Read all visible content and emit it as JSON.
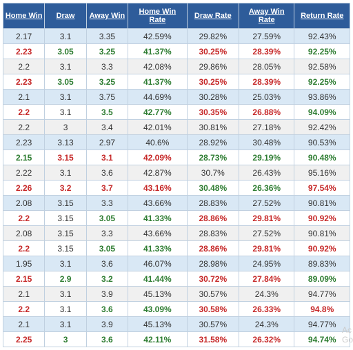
{
  "columns": [
    {
      "key": "home_win",
      "label": "Home Win",
      "width": "12%"
    },
    {
      "key": "draw",
      "label": "Draw",
      "width": "12%"
    },
    {
      "key": "away_win",
      "label": "Away Win",
      "width": "12%"
    },
    {
      "key": "home_win_rate",
      "label": "Home Win Rate",
      "width": "17%"
    },
    {
      "key": "draw_rate",
      "label": "Draw Rate",
      "width": "15%"
    },
    {
      "key": "away_win_rate",
      "label": "Away Win Rate",
      "width": "16%"
    },
    {
      "key": "return_rate",
      "label": "Return Rate",
      "width": "16%"
    }
  ],
  "colors": {
    "header_bg": "#2e5c9a",
    "header_fg": "#ffffff",
    "border": "#c0d0e0",
    "row_alt_a": "#d9e8f5",
    "row_alt_b": "#ffffff",
    "row_alt_c": "#f0f0f0",
    "text_normal": "#333333",
    "text_red": "#c62828",
    "text_green": "#2e7d32"
  },
  "rows": [
    {
      "bg": "#d9e8f5",
      "cells": [
        {
          "v": "2.17",
          "c": "norm"
        },
        {
          "v": "3.1",
          "c": "norm"
        },
        {
          "v": "3.35",
          "c": "norm"
        },
        {
          "v": "42.59%",
          "c": "norm"
        },
        {
          "v": "29.82%",
          "c": "norm"
        },
        {
          "v": "27.59%",
          "c": "norm"
        },
        {
          "v": "92.43%",
          "c": "norm"
        }
      ]
    },
    {
      "bg": "#ffffff",
      "cells": [
        {
          "v": "2.23",
          "c": "red"
        },
        {
          "v": "3.05",
          "c": "green"
        },
        {
          "v": "3.25",
          "c": "green"
        },
        {
          "v": "41.37%",
          "c": "green"
        },
        {
          "v": "30.25%",
          "c": "red"
        },
        {
          "v": "28.39%",
          "c": "red"
        },
        {
          "v": "92.25%",
          "c": "green"
        }
      ]
    },
    {
      "bg": "#f0f0f0",
      "cells": [
        {
          "v": "2.2",
          "c": "norm"
        },
        {
          "v": "3.1",
          "c": "norm"
        },
        {
          "v": "3.3",
          "c": "norm"
        },
        {
          "v": "42.08%",
          "c": "norm"
        },
        {
          "v": "29.86%",
          "c": "norm"
        },
        {
          "v": "28.05%",
          "c": "norm"
        },
        {
          "v": "92.58%",
          "c": "norm"
        }
      ]
    },
    {
      "bg": "#ffffff",
      "cells": [
        {
          "v": "2.23",
          "c": "red"
        },
        {
          "v": "3.05",
          "c": "green"
        },
        {
          "v": "3.25",
          "c": "green"
        },
        {
          "v": "41.37%",
          "c": "green"
        },
        {
          "v": "30.25%",
          "c": "red"
        },
        {
          "v": "28.39%",
          "c": "red"
        },
        {
          "v": "92.25%",
          "c": "green"
        }
      ]
    },
    {
      "bg": "#d9e8f5",
      "cells": [
        {
          "v": "2.1",
          "c": "norm"
        },
        {
          "v": "3.1",
          "c": "norm"
        },
        {
          "v": "3.75",
          "c": "norm"
        },
        {
          "v": "44.69%",
          "c": "norm"
        },
        {
          "v": "30.28%",
          "c": "norm"
        },
        {
          "v": "25.03%",
          "c": "norm"
        },
        {
          "v": "93.86%",
          "c": "norm"
        }
      ]
    },
    {
      "bg": "#ffffff",
      "cells": [
        {
          "v": "2.2",
          "c": "red"
        },
        {
          "v": "3.1",
          "c": "norm"
        },
        {
          "v": "3.5",
          "c": "green"
        },
        {
          "v": "42.77%",
          "c": "green"
        },
        {
          "v": "30.35%",
          "c": "red"
        },
        {
          "v": "26.88%",
          "c": "red"
        },
        {
          "v": "94.09%",
          "c": "green"
        }
      ]
    },
    {
      "bg": "#f0f0f0",
      "cells": [
        {
          "v": "2.2",
          "c": "norm"
        },
        {
          "v": "3",
          "c": "norm"
        },
        {
          "v": "3.4",
          "c": "norm"
        },
        {
          "v": "42.01%",
          "c": "norm"
        },
        {
          "v": "30.81%",
          "c": "norm"
        },
        {
          "v": "27.18%",
          "c": "norm"
        },
        {
          "v": "92.42%",
          "c": "norm"
        }
      ]
    },
    {
      "bg": "#d9e8f5",
      "cells": [
        {
          "v": "2.23",
          "c": "norm"
        },
        {
          "v": "3.13",
          "c": "norm"
        },
        {
          "v": "2.97",
          "c": "norm"
        },
        {
          "v": "40.6%",
          "c": "norm"
        },
        {
          "v": "28.92%",
          "c": "norm"
        },
        {
          "v": "30.48%",
          "c": "norm"
        },
        {
          "v": "90.53%",
          "c": "norm"
        }
      ]
    },
    {
      "bg": "#ffffff",
      "cells": [
        {
          "v": "2.15",
          "c": "green"
        },
        {
          "v": "3.15",
          "c": "red"
        },
        {
          "v": "3.1",
          "c": "red"
        },
        {
          "v": "42.09%",
          "c": "red"
        },
        {
          "v": "28.73%",
          "c": "green"
        },
        {
          "v": "29.19%",
          "c": "green"
        },
        {
          "v": "90.48%",
          "c": "green"
        }
      ]
    },
    {
      "bg": "#f0f0f0",
      "cells": [
        {
          "v": "2.22",
          "c": "norm"
        },
        {
          "v": "3.1",
          "c": "norm"
        },
        {
          "v": "3.6",
          "c": "norm"
        },
        {
          "v": "42.87%",
          "c": "norm"
        },
        {
          "v": "30.7%",
          "c": "norm"
        },
        {
          "v": "26.43%",
          "c": "norm"
        },
        {
          "v": "95.16%",
          "c": "norm"
        }
      ]
    },
    {
      "bg": "#ffffff",
      "cells": [
        {
          "v": "2.26",
          "c": "red"
        },
        {
          "v": "3.2",
          "c": "red"
        },
        {
          "v": "3.7",
          "c": "red"
        },
        {
          "v": "43.16%",
          "c": "red"
        },
        {
          "v": "30.48%",
          "c": "green"
        },
        {
          "v": "26.36%",
          "c": "green"
        },
        {
          "v": "97.54%",
          "c": "red"
        }
      ]
    },
    {
      "bg": "#d9e8f5",
      "cells": [
        {
          "v": "2.08",
          "c": "norm"
        },
        {
          "v": "3.15",
          "c": "norm"
        },
        {
          "v": "3.3",
          "c": "norm"
        },
        {
          "v": "43.66%",
          "c": "norm"
        },
        {
          "v": "28.83%",
          "c": "norm"
        },
        {
          "v": "27.52%",
          "c": "norm"
        },
        {
          "v": "90.81%",
          "c": "norm"
        }
      ]
    },
    {
      "bg": "#ffffff",
      "cells": [
        {
          "v": "2.2",
          "c": "red"
        },
        {
          "v": "3.15",
          "c": "norm"
        },
        {
          "v": "3.05",
          "c": "green"
        },
        {
          "v": "41.33%",
          "c": "green"
        },
        {
          "v": "28.86%",
          "c": "red"
        },
        {
          "v": "29.81%",
          "c": "red"
        },
        {
          "v": "90.92%",
          "c": "red"
        }
      ]
    },
    {
      "bg": "#f0f0f0",
      "cells": [
        {
          "v": "2.08",
          "c": "norm"
        },
        {
          "v": "3.15",
          "c": "norm"
        },
        {
          "v": "3.3",
          "c": "norm"
        },
        {
          "v": "43.66%",
          "c": "norm"
        },
        {
          "v": "28.83%",
          "c": "norm"
        },
        {
          "v": "27.52%",
          "c": "norm"
        },
        {
          "v": "90.81%",
          "c": "norm"
        }
      ]
    },
    {
      "bg": "#ffffff",
      "cells": [
        {
          "v": "2.2",
          "c": "red"
        },
        {
          "v": "3.15",
          "c": "norm"
        },
        {
          "v": "3.05",
          "c": "green"
        },
        {
          "v": "41.33%",
          "c": "green"
        },
        {
          "v": "28.86%",
          "c": "red"
        },
        {
          "v": "29.81%",
          "c": "red"
        },
        {
          "v": "90.92%",
          "c": "red"
        }
      ]
    },
    {
      "bg": "#d9e8f5",
      "cells": [
        {
          "v": "1.95",
          "c": "norm"
        },
        {
          "v": "3.1",
          "c": "norm"
        },
        {
          "v": "3.6",
          "c": "norm"
        },
        {
          "v": "46.07%",
          "c": "norm"
        },
        {
          "v": "28.98%",
          "c": "norm"
        },
        {
          "v": "24.95%",
          "c": "norm"
        },
        {
          "v": "89.83%",
          "c": "norm"
        }
      ]
    },
    {
      "bg": "#ffffff",
      "cells": [
        {
          "v": "2.15",
          "c": "red"
        },
        {
          "v": "2.9",
          "c": "green"
        },
        {
          "v": "3.2",
          "c": "green"
        },
        {
          "v": "41.44%",
          "c": "green"
        },
        {
          "v": "30.72%",
          "c": "red"
        },
        {
          "v": "27.84%",
          "c": "red"
        },
        {
          "v": "89.09%",
          "c": "green"
        }
      ]
    },
    {
      "bg": "#f0f0f0",
      "cells": [
        {
          "v": "2.1",
          "c": "norm"
        },
        {
          "v": "3.1",
          "c": "norm"
        },
        {
          "v": "3.9",
          "c": "norm"
        },
        {
          "v": "45.13%",
          "c": "norm"
        },
        {
          "v": "30.57%",
          "c": "norm"
        },
        {
          "v": "24.3%",
          "c": "norm"
        },
        {
          "v": "94.77%",
          "c": "norm"
        }
      ]
    },
    {
      "bg": "#ffffff",
      "cells": [
        {
          "v": "2.2",
          "c": "red"
        },
        {
          "v": "3.1",
          "c": "norm"
        },
        {
          "v": "3.6",
          "c": "green"
        },
        {
          "v": "43.09%",
          "c": "green"
        },
        {
          "v": "30.58%",
          "c": "red"
        },
        {
          "v": "26.33%",
          "c": "red"
        },
        {
          "v": "94.8%",
          "c": "red"
        }
      ]
    },
    {
      "bg": "#d9e8f5",
      "cells": [
        {
          "v": "2.1",
          "c": "norm"
        },
        {
          "v": "3.1",
          "c": "norm"
        },
        {
          "v": "3.9",
          "c": "norm"
        },
        {
          "v": "45.13%",
          "c": "norm"
        },
        {
          "v": "30.57%",
          "c": "norm"
        },
        {
          "v": "24.3%",
          "c": "norm"
        },
        {
          "v": "94.77%",
          "c": "norm"
        }
      ]
    },
    {
      "bg": "#ffffff",
      "cells": [
        {
          "v": "2.25",
          "c": "red"
        },
        {
          "v": "3",
          "c": "green"
        },
        {
          "v": "3.6",
          "c": "green"
        },
        {
          "v": "42.11%",
          "c": "green"
        },
        {
          "v": "31.58%",
          "c": "red"
        },
        {
          "v": "26.32%",
          "c": "red"
        },
        {
          "v": "94.74%",
          "c": "green"
        }
      ]
    }
  ],
  "watermark": {
    "line1": "Ac",
    "line2": "Go"
  }
}
